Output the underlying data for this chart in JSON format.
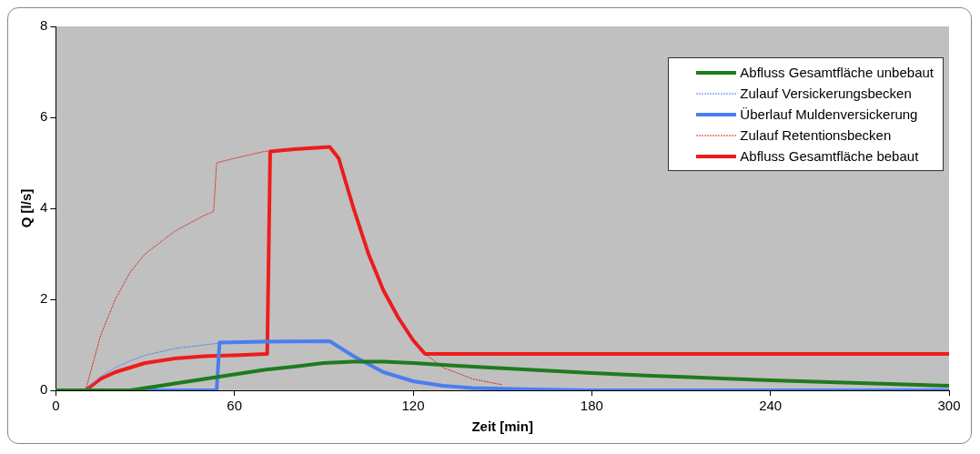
{
  "chart_data": {
    "type": "line",
    "xlabel": "Zeit [min]",
    "ylabel": "Q [l/s]",
    "xlim": [
      0,
      300
    ],
    "xticks": [
      0,
      60,
      120,
      180,
      240,
      300
    ],
    "ylim": [
      0,
      8
    ],
    "yticks": [
      0,
      2,
      4,
      6,
      8
    ],
    "grid": false,
    "legend": "top right",
    "marker": "none",
    "series": [
      {
        "name": "Abfluss Gesamtfläche unbebaut",
        "color": "#1e7b1e",
        "line_style": "solid",
        "x": [
          0,
          25,
          30,
          40,
          50,
          60,
          70,
          80,
          90,
          100,
          110,
          120,
          140,
          160,
          180,
          200,
          220,
          240,
          260,
          280,
          300
        ],
        "values": [
          0,
          0,
          0.05,
          0.15,
          0.25,
          0.35,
          0.45,
          0.52,
          0.6,
          0.63,
          0.63,
          0.6,
          0.52,
          0.45,
          0.38,
          0.32,
          0.27,
          0.22,
          0.18,
          0.14,
          0.1
        ]
      },
      {
        "name": "Zulauf Versickerungsbecken",
        "color": "#4a7ef0",
        "line_style": "dashed",
        "x": [
          0,
          10,
          15,
          20,
          25,
          30,
          40,
          50,
          54,
          60,
          70,
          80,
          92,
          100,
          110,
          120,
          130,
          140,
          160,
          180,
          300
        ],
        "values": [
          0,
          0,
          0.3,
          0.5,
          0.65,
          0.77,
          0.92,
          1.0,
          1.03,
          1.06,
          1.07,
          1.08,
          1.08,
          0.75,
          0.4,
          0.2,
          0.1,
          0.05,
          0.02,
          0,
          0
        ]
      },
      {
        "name": "Überlauf Muldenversickerung",
        "color": "#4a7ef0",
        "line_style": "solid",
        "x": [
          0,
          54,
          55,
          70,
          92,
          100,
          110,
          120,
          130,
          140,
          160,
          180,
          300
        ],
        "values": [
          0,
          0,
          1.05,
          1.07,
          1.08,
          0.75,
          0.4,
          0.2,
          0.1,
          0.05,
          0.02,
          0,
          0
        ]
      },
      {
        "name": "Zulauf Retentionsbecken",
        "color": "#e02020",
        "line_style": "dashed",
        "x": [
          0,
          10,
          15,
          20,
          25,
          30,
          40,
          50,
          53,
          54,
          60,
          70,
          80,
          92,
          95,
          100,
          105,
          110,
          115,
          120,
          124,
          130,
          140,
          150
        ],
        "values": [
          0,
          0,
          1.2,
          2.0,
          2.6,
          3.0,
          3.5,
          3.85,
          3.93,
          5.0,
          5.1,
          5.25,
          5.3,
          5.35,
          5.1,
          4.0,
          3.0,
          2.2,
          1.6,
          1.1,
          0.8,
          0.5,
          0.25,
          0.12
        ]
      },
      {
        "name": "Abfluss Gesamtfläche bebaut",
        "color": "#ee1c1c",
        "line_style": "solid",
        "x": [
          0,
          10,
          15,
          20,
          30,
          40,
          50,
          60,
          71,
          72,
          80,
          92,
          95,
          100,
          105,
          110,
          115,
          120,
          124,
          300
        ],
        "values": [
          0,
          0,
          0.25,
          0.4,
          0.6,
          0.7,
          0.75,
          0.77,
          0.8,
          5.25,
          5.3,
          5.35,
          5.1,
          4.0,
          3.0,
          2.2,
          1.6,
          1.1,
          0.8,
          0.8
        ]
      }
    ]
  }
}
